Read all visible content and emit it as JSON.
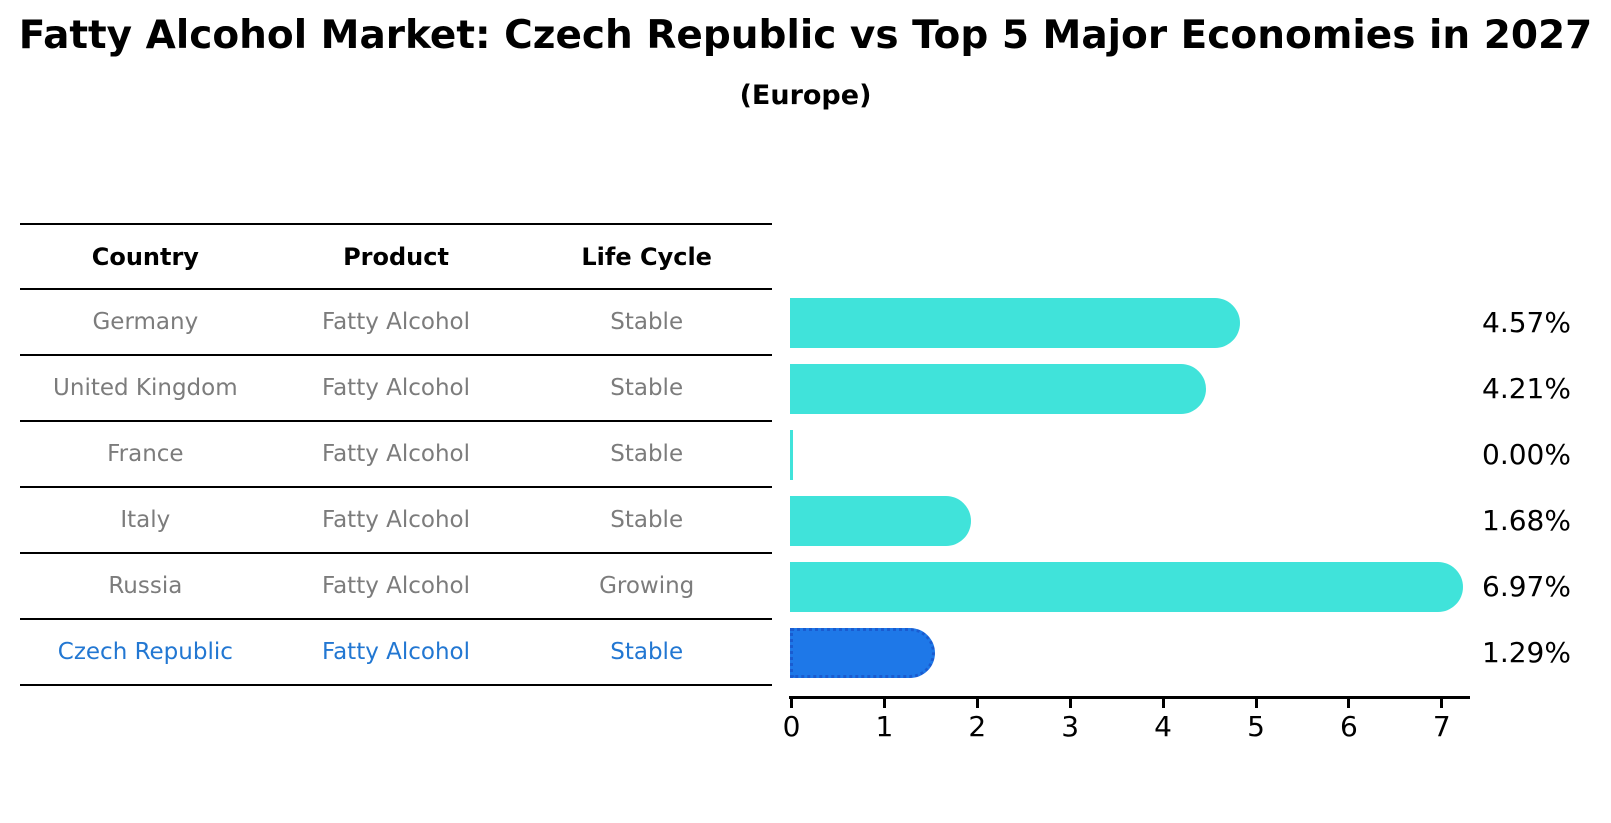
{
  "chart_data": {
    "type": "bar",
    "orientation": "horizontal",
    "title": "Fatty Alcohol Market: Czech Republic vs Top 5 Major Economies in 2027",
    "subtitle": "(Europe)",
    "table_headers": [
      "Country",
      "Product",
      "Life Cycle"
    ],
    "categories": [
      "Germany",
      "United Kingdom",
      "France",
      "Italy",
      "Russia",
      "Czech Republic"
    ],
    "values": [
      4.57,
      4.21,
      0.0,
      1.68,
      6.97,
      1.29
    ],
    "rows": [
      {
        "country": "Germany",
        "product": "Fatty Alcohol",
        "life_cycle": "Stable",
        "value": 4.57,
        "value_label": "4.57%",
        "highlight": false
      },
      {
        "country": "United Kingdom",
        "product": "Fatty Alcohol",
        "life_cycle": "Stable",
        "value": 4.21,
        "value_label": "4.21%",
        "highlight": false
      },
      {
        "country": "France",
        "product": "Fatty Alcohol",
        "life_cycle": "Stable",
        "value": 0.0,
        "value_label": "0.00%",
        "highlight": false
      },
      {
        "country": "Italy",
        "product": "Fatty Alcohol",
        "life_cycle": "Stable",
        "value": 1.68,
        "value_label": "1.68%",
        "highlight": false
      },
      {
        "country": "Russia",
        "product": "Fatty Alcohol",
        "life_cycle": "Growing",
        "value": 6.97,
        "value_label": "6.97%",
        "highlight": false
      },
      {
        "country": "Czech Republic",
        "product": "Fatty Alcohol",
        "life_cycle": "Stable",
        "value": 1.29,
        "value_label": "1.29%",
        "highlight": true
      }
    ],
    "xticks": [
      "0",
      "1",
      "2",
      "3",
      "4",
      "5",
      "6",
      "7"
    ],
    "xlim": [
      0,
      7.3
    ],
    "grid": false,
    "legend": "none",
    "colors": {
      "bar": "#40E3DA",
      "highlight_bar": "#1E78E8",
      "highlight_border": "#1A5CD0",
      "highlight_text": "#2277D2",
      "row_text": "#7C7C7C",
      "axis_text": "#000000"
    }
  }
}
